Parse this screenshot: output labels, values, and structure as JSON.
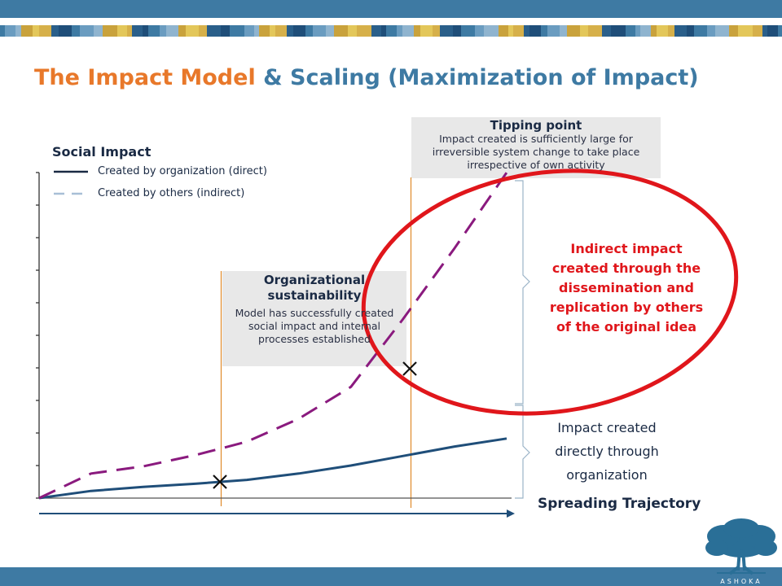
{
  "slide": {
    "title_part1": "The Impact Model",
    "title_part2": "& Scaling (Maximization of Impact)",
    "colors": {
      "banner": "#3e7aa3",
      "title_accent": "#e8782a",
      "title_main": "#3e7aa3",
      "highlight": "#e0161b",
      "direct_line": "#1f4e79",
      "indirect_line": "#8a1a7e"
    }
  },
  "diagram": {
    "y_axis_label": "Social Impact",
    "x_axis_label": "Spreading Trajectory",
    "legend": [
      {
        "label": "Created by organization (direct)",
        "style": "solid"
      },
      {
        "label": "Created by others (indirect)",
        "style": "dashed"
      }
    ],
    "milestone_sustainability": {
      "heading_line1": "Organizational",
      "heading_line2": "sustainability",
      "body": [
        "Model has successfully created",
        "social impact and internal",
        "processes established"
      ]
    },
    "milestone_tipping": {
      "heading": "Tipping point",
      "body": [
        "Impact created is sufficiently large for",
        "irreversible system change to take place",
        "irrespective of own activity"
      ]
    },
    "indirect_note": [
      "Indirect impact",
      "created through the",
      "dissemination and",
      "replication by others",
      "of the original idea"
    ],
    "direct_note": [
      "Impact created",
      "directly through",
      "organization"
    ],
    "logo_text": "ASHOKA"
  },
  "chart_data": {
    "type": "line",
    "series": [
      {
        "name": "Created by organization (direct)",
        "x": [
          0,
          1,
          2,
          3,
          4,
          5,
          6,
          7,
          8,
          9
        ],
        "y": [
          0,
          0.9,
          1.4,
          1.8,
          2.3,
          3.1,
          4.1,
          5.3,
          6.5,
          7.5
        ]
      },
      {
        "name": "Created by others (indirect)",
        "x": [
          0,
          1,
          2,
          3,
          4,
          5,
          6,
          7,
          8,
          9
        ],
        "y": [
          0,
          3.1,
          4.0,
          5.4,
          7.1,
          10.0,
          14.0,
          22.5,
          31.5,
          41.0
        ]
      }
    ],
    "markers": [
      {
        "label": "Organizational sustainability",
        "x": 3.45
      },
      {
        "label": "Tipping point",
        "x": 7.0
      }
    ]
  }
}
